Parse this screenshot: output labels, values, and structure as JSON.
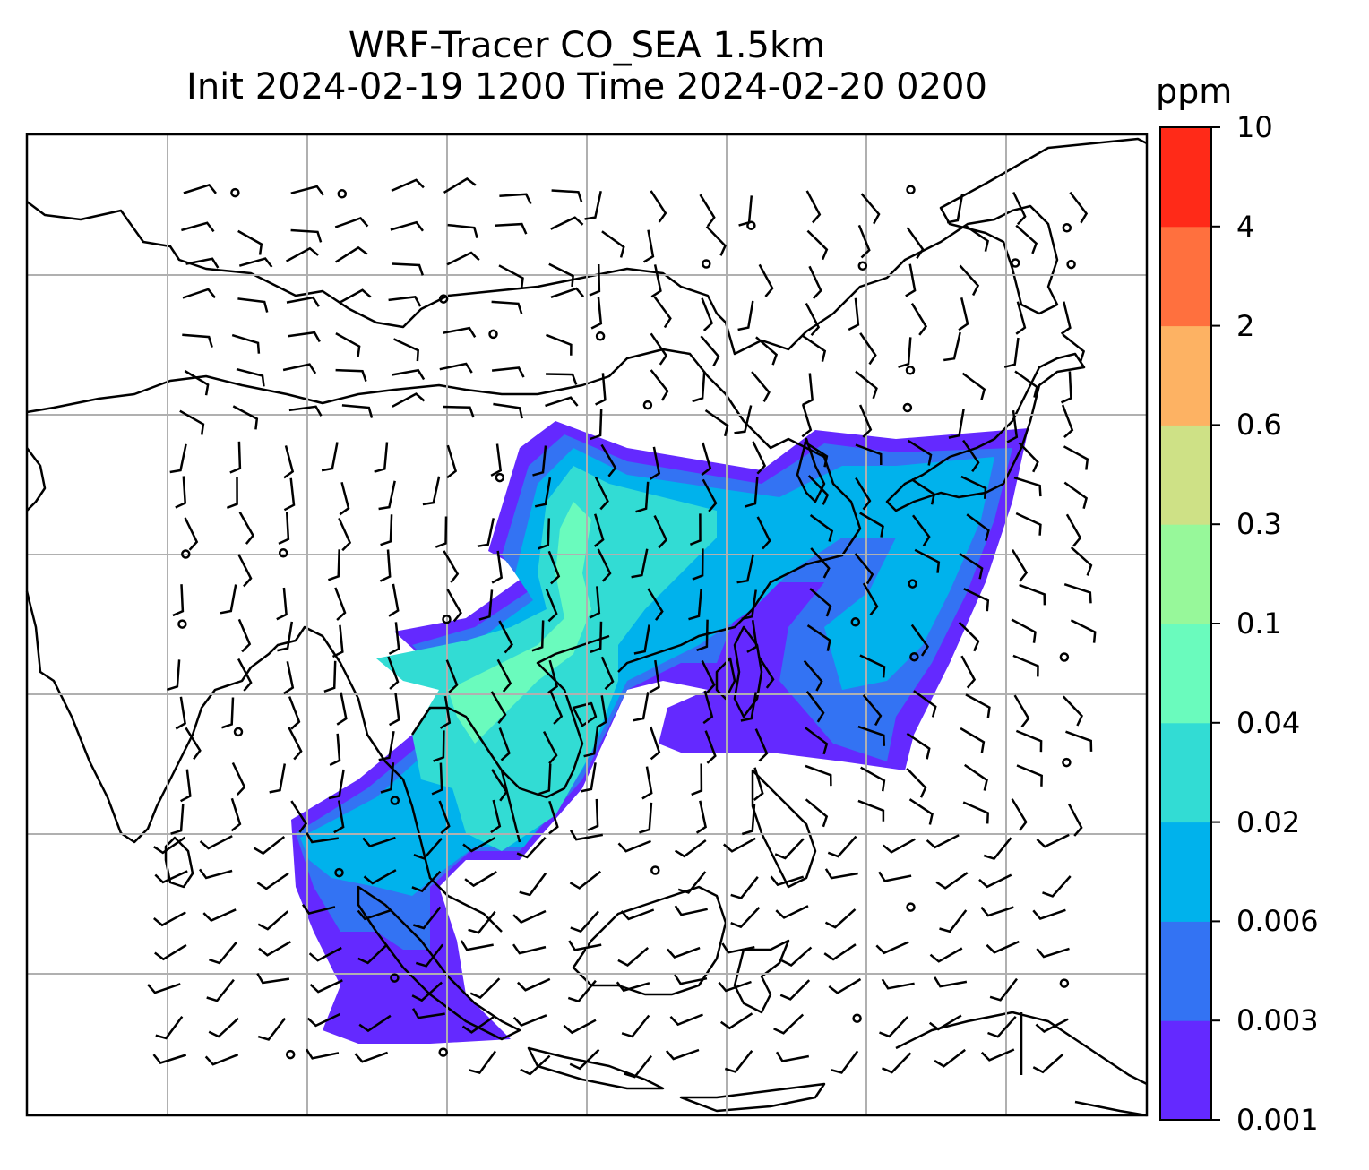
{
  "title": {
    "line1": "WRF-Tracer CO_SEA 1.5km",
    "line2": "Init 2024-02-19 1200 Time 2024-02-20 0200"
  },
  "colorbar": {
    "unit": "ppm",
    "levels": [
      "0.001",
      "0.003",
      "0.006",
      "0.02",
      "0.04",
      "0.1",
      "0.3",
      "0.6",
      "2",
      "4",
      "10"
    ],
    "colors": [
      "#6429ff",
      "#3373f3",
      "#00b2ec",
      "#32dcd4",
      "#6afbbd",
      "#97f89a",
      "#cee186",
      "#fdb263",
      "#ff703e",
      "#ff2a18"
    ]
  },
  "map": {
    "coastline_color": "#000000",
    "gridline_color": "#b0b0b0",
    "wind_barb_color": "#000000"
  }
}
